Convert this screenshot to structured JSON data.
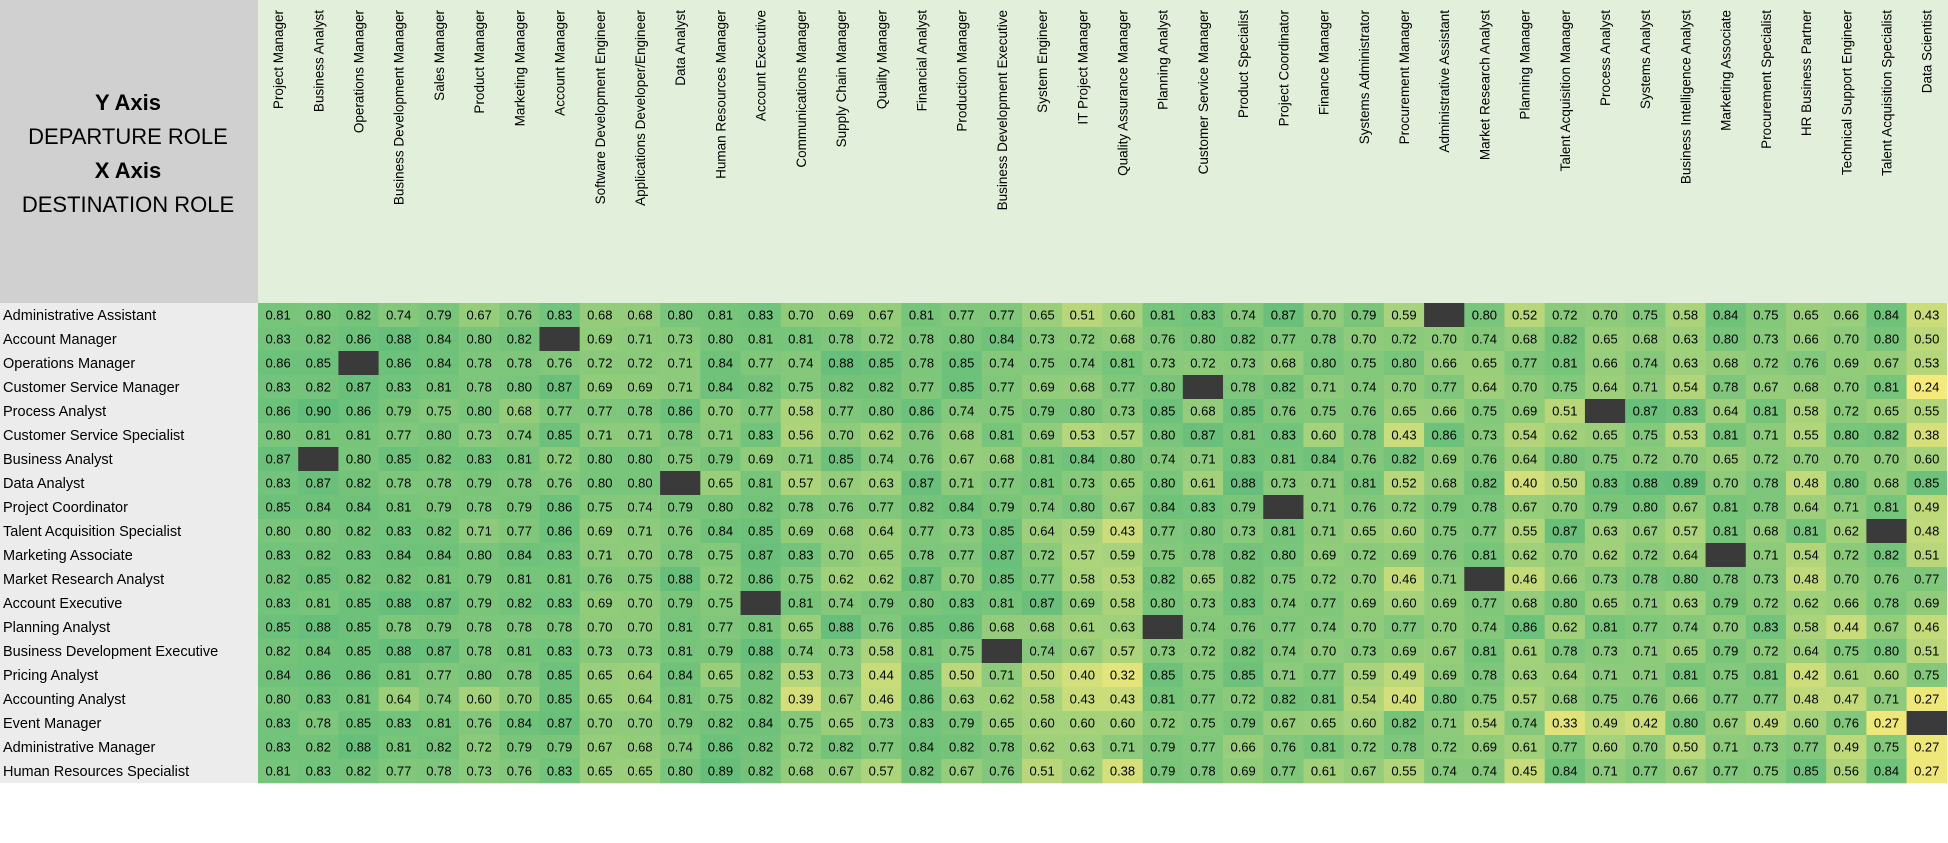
{
  "header": {
    "y_axis_title": "Y Axis",
    "y_axis_subtitle": "DEPARTURE ROLE",
    "x_axis_title": "X Axis",
    "x_axis_subtitle": "DESTINATION ROLE"
  },
  "colors": {
    "header_bg": "#e2efda",
    "corner_bg": "#d0d0d0",
    "row_label_bg": "#ececec",
    "diagonal_blank": "#3a3a3a",
    "scale_low": "#f5e97a",
    "scale_high": "#63be7b"
  },
  "chart_data": {
    "type": "heatmap",
    "xlabel": "DESTINATION ROLE",
    "ylabel": "DEPARTURE ROLE",
    "columns": [
      "Project Manager",
      "Business Analyst",
      "Operations Manager",
      "Business Development Manager",
      "Sales Manager",
      "Product Manager",
      "Marketing Manager",
      "Account Manager",
      "Software Development Engineer",
      "Applications Developer/Engineer",
      "Data Analyst",
      "Human Resources Manager",
      "Account Executive",
      "Communications Manager",
      "Supply Chain Manager",
      "Quality Manager",
      "Financial Analyst",
      "Production Manager",
      "Business Development Executive",
      "System Engineer",
      "IT Project Manager",
      "Quality Assurance Manager",
      "Planning Analyst",
      "Customer Service Manager",
      "Product Specialist",
      "Project Coordinator",
      "Finance Manager",
      "Systems Administrator",
      "Procurement Manager",
      "Administrative Assistant",
      "Market Research Analyst",
      "Planning Manager",
      "Talent Acquisition Manager",
      "Process Analyst",
      "Systems Analyst",
      "Business Intelligence Analyst",
      "Marketing Associate",
      "Procurement Specialist",
      "HR Business Partner",
      "Technical Support Engineer",
      "Talent Acquisition Specialist",
      "Data Scientist"
    ],
    "rows": [
      "Administrative Assistant",
      "Account Manager",
      "Operations Manager",
      "Customer Service Manager",
      "Process Analyst",
      "Customer Service Specialist",
      "Business Analyst",
      "Data Analyst",
      "Project Coordinator",
      "Talent Acquisition Specialist",
      "Marketing Associate",
      "Market Research Analyst",
      "Account Executive",
      "Planning Analyst",
      "Business Development Executive",
      "Pricing Analyst",
      "Accounting Analyst",
      "Event Manager",
      "Administrative Manager",
      "Human Resources Specialist"
    ],
    "values": [
      [
        0.81,
        0.8,
        0.82,
        0.74,
        0.79,
        0.67,
        0.76,
        0.83,
        0.68,
        0.68,
        0.8,
        0.81,
        0.83,
        0.7,
        0.69,
        0.67,
        0.81,
        0.77,
        0.77,
        0.65,
        0.51,
        0.6,
        0.81,
        0.83,
        0.74,
        0.87,
        0.7,
        0.79,
        0.59,
        null,
        0.8,
        0.52,
        0.72,
        0.7,
        0.75,
        0.58,
        0.84,
        0.75,
        0.65,
        0.66,
        0.84,
        0.43
      ],
      [
        0.83,
        0.82,
        0.86,
        0.88,
        0.84,
        0.8,
        0.82,
        null,
        0.69,
        0.71,
        0.73,
        0.8,
        0.81,
        0.81,
        0.78,
        0.72,
        0.78,
        0.8,
        0.84,
        0.73,
        0.72,
        0.68,
        0.76,
        0.8,
        0.82,
        0.77,
        0.78,
        0.7,
        0.72,
        0.7,
        0.74,
        0.68,
        0.82,
        0.65,
        0.68,
        0.63,
        0.8,
        0.73,
        0.66,
        0.7,
        0.8,
        0.5
      ],
      [
        0.86,
        0.85,
        null,
        0.86,
        0.84,
        0.78,
        0.78,
        0.76,
        0.72,
        0.72,
        0.71,
        0.84,
        0.77,
        0.74,
        0.88,
        0.85,
        0.78,
        0.85,
        0.74,
        0.75,
        0.74,
        0.81,
        0.73,
        0.72,
        0.73,
        0.68,
        0.8,
        0.75,
        0.8,
        0.66,
        0.65,
        0.77,
        0.81,
        0.66,
        0.74,
        0.63,
        0.68,
        0.72,
        0.76,
        0.69,
        0.67,
        0.53
      ],
      [
        0.83,
        0.82,
        0.87,
        0.83,
        0.81,
        0.78,
        0.8,
        0.87,
        0.69,
        0.69,
        0.71,
        0.84,
        0.82,
        0.75,
        0.82,
        0.82,
        0.77,
        0.85,
        0.77,
        0.69,
        0.68,
        0.77,
        0.8,
        null,
        0.78,
        0.82,
        0.71,
        0.74,
        0.7,
        0.77,
        0.64,
        0.7,
        0.75,
        0.64,
        0.71,
        0.54,
        0.78,
        0.67,
        0.68,
        0.7,
        0.81,
        0.24
      ],
      [
        0.86,
        0.9,
        0.86,
        0.79,
        0.75,
        0.8,
        0.68,
        0.77,
        0.77,
        0.78,
        0.86,
        0.7,
        0.77,
        0.58,
        0.77,
        0.8,
        0.86,
        0.74,
        0.75,
        0.79,
        0.8,
        0.73,
        0.85,
        0.68,
        0.85,
        0.76,
        0.75,
        0.76,
        0.65,
        0.66,
        0.75,
        0.69,
        0.51,
        null,
        0.87,
        0.83,
        0.64,
        0.81,
        0.58,
        0.72,
        0.65,
        0.55
      ],
      [
        0.8,
        0.81,
        0.81,
        0.77,
        0.8,
        0.73,
        0.74,
        0.85,
        0.71,
        0.71,
        0.78,
        0.71,
        0.83,
        0.56,
        0.7,
        0.62,
        0.76,
        0.68,
        0.81,
        0.69,
        0.53,
        0.57,
        0.8,
        0.87,
        0.81,
        0.83,
        0.6,
        0.78,
        0.43,
        0.86,
        0.73,
        0.54,
        0.62,
        0.65,
        0.75,
        0.53,
        0.81,
        0.71,
        0.55,
        0.8,
        0.82,
        0.38
      ],
      [
        0.87,
        null,
        0.8,
        0.85,
        0.82,
        0.83,
        0.81,
        0.72,
        0.8,
        0.8,
        0.75,
        0.79,
        0.69,
        0.71,
        0.85,
        0.74,
        0.76,
        0.67,
        0.68,
        0.81,
        0.84,
        0.8,
        0.74,
        0.71,
        0.83,
        0.81,
        0.84,
        0.76,
        0.82,
        0.69,
        0.76,
        0.64,
        0.8,
        0.75,
        0.72,
        0.7,
        0.65,
        0.72,
        0.7,
        0.7,
        0.7,
        0.6
      ],
      [
        0.83,
        0.87,
        0.82,
        0.78,
        0.78,
        0.79,
        0.78,
        0.76,
        0.8,
        0.8,
        null,
        0.65,
        0.81,
        0.57,
        0.67,
        0.63,
        0.87,
        0.71,
        0.77,
        0.81,
        0.73,
        0.65,
        0.8,
        0.61,
        0.88,
        0.73,
        0.71,
        0.81,
        0.52,
        0.68,
        0.82,
        0.4,
        0.5,
        0.83,
        0.88,
        0.89,
        0.7,
        0.78,
        0.48,
        0.8,
        0.68,
        0.85
      ],
      [
        0.85,
        0.84,
        0.84,
        0.81,
        0.79,
        0.78,
        0.79,
        0.86,
        0.75,
        0.74,
        0.79,
        0.8,
        0.82,
        0.78,
        0.76,
        0.77,
        0.82,
        0.84,
        0.79,
        0.74,
        0.8,
        0.67,
        0.84,
        0.83,
        0.79,
        null,
        0.71,
        0.76,
        0.72,
        0.79,
        0.78,
        0.67,
        0.7,
        0.79,
        0.8,
        0.67,
        0.81,
        0.78,
        0.64,
        0.71,
        0.81,
        0.49
      ],
      [
        0.8,
        0.8,
        0.82,
        0.83,
        0.82,
        0.71,
        0.77,
        0.86,
        0.69,
        0.71,
        0.76,
        0.84,
        0.85,
        0.69,
        0.68,
        0.64,
        0.77,
        0.73,
        0.85,
        0.64,
        0.59,
        0.43,
        0.77,
        0.8,
        0.73,
        0.81,
        0.71,
        0.65,
        0.6,
        0.75,
        0.77,
        0.55,
        0.87,
        0.63,
        0.67,
        0.57,
        0.81,
        0.68,
        0.81,
        0.62,
        null,
        0.48
      ],
      [
        0.83,
        0.82,
        0.83,
        0.84,
        0.84,
        0.8,
        0.84,
        0.83,
        0.71,
        0.7,
        0.78,
        0.75,
        0.87,
        0.83,
        0.7,
        0.65,
        0.78,
        0.77,
        0.87,
        0.72,
        0.57,
        0.59,
        0.75,
        0.78,
        0.82,
        0.8,
        0.69,
        0.72,
        0.69,
        0.76,
        0.81,
        0.62,
        0.7,
        0.62,
        0.72,
        0.64,
        null,
        0.71,
        0.54,
        0.72,
        0.82,
        0.51
      ],
      [
        0.82,
        0.85,
        0.82,
        0.82,
        0.81,
        0.79,
        0.81,
        0.81,
        0.76,
        0.75,
        0.88,
        0.72,
        0.86,
        0.75,
        0.62,
        0.62,
        0.87,
        0.7,
        0.85,
        0.77,
        0.58,
        0.53,
        0.82,
        0.65,
        0.82,
        0.75,
        0.72,
        0.7,
        0.46,
        0.71,
        null,
        0.46,
        0.66,
        0.73,
        0.78,
        0.8,
        0.78,
        0.73,
        0.48,
        0.7,
        0.76,
        0.77
      ],
      [
        0.83,
        0.81,
        0.85,
        0.88,
        0.87,
        0.79,
        0.82,
        0.83,
        0.69,
        0.7,
        0.79,
        0.75,
        null,
        0.81,
        0.74,
        0.79,
        0.8,
        0.83,
        0.81,
        0.87,
        0.69,
        0.58,
        0.8,
        0.73,
        0.83,
        0.74,
        0.77,
        0.69,
        0.6,
        0.69,
        0.77,
        0.68,
        0.8,
        0.65,
        0.71,
        0.63,
        0.79,
        0.72,
        0.62,
        0.66,
        0.78,
        0.69
      ],
      [
        0.85,
        0.88,
        0.85,
        0.78,
        0.79,
        0.78,
        0.78,
        0.78,
        0.7,
        0.7,
        0.81,
        0.77,
        0.81,
        0.65,
        0.88,
        0.76,
        0.85,
        0.86,
        0.68,
        0.68,
        0.61,
        0.63,
        null,
        0.74,
        0.76,
        0.77,
        0.74,
        0.7,
        0.77,
        0.7,
        0.74,
        0.86,
        0.62,
        0.81,
        0.77,
        0.74,
        0.7,
        0.83,
        0.58,
        0.44,
        0.67,
        0.46
      ],
      [
        0.82,
        0.84,
        0.85,
        0.88,
        0.87,
        0.78,
        0.81,
        0.83,
        0.73,
        0.73,
        0.81,
        0.79,
        0.88,
        0.74,
        0.73,
        0.58,
        0.81,
        0.75,
        null,
        0.74,
        0.67,
        0.57,
        0.73,
        0.72,
        0.82,
        0.74,
        0.7,
        0.73,
        0.69,
        0.67,
        0.81,
        0.61,
        0.78,
        0.73,
        0.71,
        0.65,
        0.79,
        0.72,
        0.64,
        0.75,
        0.8,
        0.51
      ],
      [
        0.84,
        0.86,
        0.86,
        0.81,
        0.77,
        0.8,
        0.78,
        0.85,
        0.65,
        0.64,
        0.84,
        0.65,
        0.82,
        0.53,
        0.73,
        0.44,
        0.85,
        0.5,
        0.71,
        0.5,
        0.4,
        0.32,
        0.85,
        0.75,
        0.85,
        0.71,
        0.77,
        0.59,
        0.49,
        0.69,
        0.78,
        0.63,
        0.64,
        0.71,
        0.71,
        0.81,
        0.75,
        0.81,
        0.42,
        0.61,
        0.6,
        0.75
      ],
      [
        0.8,
        0.83,
        0.81,
        0.64,
        0.74,
        0.6,
        0.7,
        0.85,
        0.65,
        0.64,
        0.81,
        0.75,
        0.82,
        0.39,
        0.67,
        0.46,
        0.86,
        0.63,
        0.62,
        0.58,
        0.43,
        0.43,
        0.81,
        0.77,
        0.72,
        0.82,
        0.81,
        0.54,
        0.4,
        0.8,
        0.75,
        0.57,
        0.68,
        0.75,
        0.76,
        0.66,
        0.77,
        0.77,
        0.48,
        0.47,
        0.71,
        0.27
      ],
      [
        0.83,
        0.78,
        0.85,
        0.83,
        0.81,
        0.76,
        0.84,
        0.87,
        0.7,
        0.7,
        0.79,
        0.82,
        0.84,
        0.75,
        0.65,
        0.73,
        0.83,
        0.79,
        0.65,
        0.6,
        0.6,
        0.6,
        0.72,
        0.75,
        0.79,
        0.67,
        0.65,
        0.6,
        0.82,
        0.71,
        0.54,
        0.74,
        0.33,
        0.49,
        0.42,
        0.8,
        0.67,
        0.49,
        0.6,
        0.76,
        0.27,
        null
      ],
      [
        0.83,
        0.82,
        0.88,
        0.81,
        0.82,
        0.72,
        0.79,
        0.79,
        0.67,
        0.68,
        0.74,
        0.86,
        0.82,
        0.72,
        0.82,
        0.77,
        0.84,
        0.82,
        0.78,
        0.62,
        0.63,
        0.71,
        0.79,
        0.77,
        0.66,
        0.76,
        0.81,
        0.72,
        0.78,
        0.72,
        0.69,
        0.61,
        0.77,
        0.6,
        0.7,
        0.5,
        0.71,
        0.73,
        0.77,
        0.49,
        0.75,
        0.27
      ],
      [
        0.81,
        0.83,
        0.82,
        0.77,
        0.78,
        0.73,
        0.76,
        0.83,
        0.65,
        0.65,
        0.8,
        0.89,
        0.82,
        0.68,
        0.67,
        0.57,
        0.82,
        0.67,
        0.76,
        0.51,
        0.62,
        0.38,
        0.79,
        0.78,
        0.69,
        0.77,
        0.61,
        0.67,
        0.55,
        0.74,
        0.74,
        0.45,
        0.84,
        0.71,
        0.77,
        0.67,
        0.77,
        0.75,
        0.85,
        0.56,
        0.84,
        0.27
      ]
    ]
  }
}
